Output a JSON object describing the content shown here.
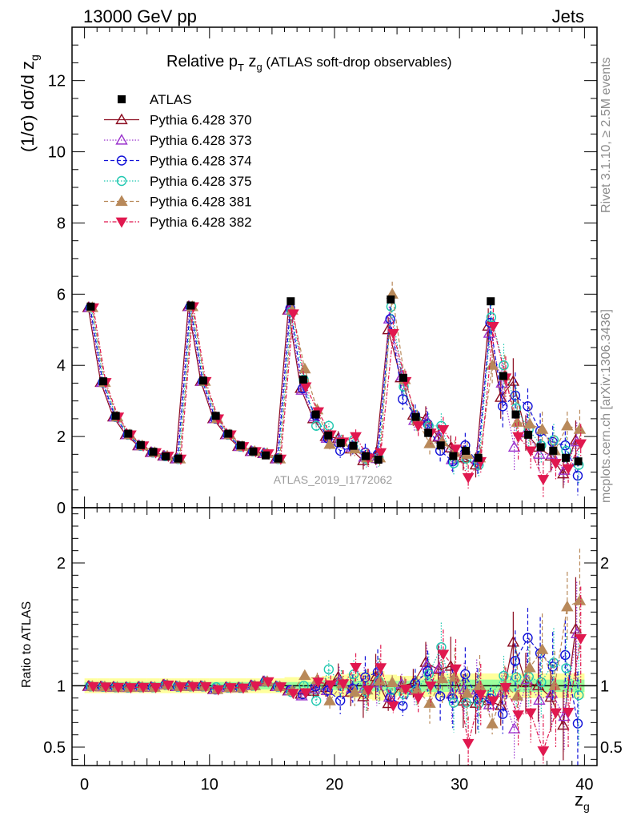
{
  "header": {
    "left": "13000 GeV pp",
    "right": "Jets"
  },
  "side_text": {
    "rivet": "Rivet 3.1.10, ≥ 2.5M events",
    "mcplots": "mcplots.cern.ch [arXiv:1306.3436]"
  },
  "watermark": "ATLAS_2019_I1772062",
  "chart_data": {
    "type": "scatter",
    "title": "Relative p_T z_g (ATLAS soft-drop observables)",
    "title_parts": {
      "main": "Relative p",
      "sub1": "T",
      "mid": " z",
      "sub2": "g",
      "rest": " (ATLAS soft-drop observables)"
    },
    "ylabel": "(1/σ) dσ/d z_g",
    "ylabel_parts": {
      "main": "(1/σ) dσ/d z",
      "sub": "g"
    },
    "xlabel": "z_g",
    "xlabel_parts": {
      "main": "z",
      "sub": "g"
    },
    "ratio_ylabel": "Ratio to ATLAS",
    "xlim": [
      -1,
      41
    ],
    "ylim": [
      0,
      13.5
    ],
    "ratio_ylim": [
      0.35,
      2.45
    ],
    "xticks": [
      0,
      10,
      20,
      30,
      40
    ],
    "yticks": [
      0,
      2,
      4,
      6,
      8,
      10,
      12
    ],
    "ratio_yticks": [
      0.5,
      1,
      2
    ],
    "x": [
      0.5,
      1.5,
      2.5,
      3.5,
      4.5,
      5.5,
      6.5,
      7.5,
      8.5,
      9.5,
      10.5,
      11.5,
      12.5,
      13.5,
      14.5,
      15.5,
      16.5,
      17.5,
      18.5,
      19.5,
      20.5,
      21.5,
      22.5,
      23.5,
      24.5,
      25.5,
      26.5,
      27.5,
      28.5,
      29.5,
      30.5,
      31.5,
      32.5,
      33.5,
      34.5,
      35.5,
      36.5,
      37.5,
      38.5,
      39.5
    ],
    "data": {
      "name": "ATLAS",
      "values": [
        5.65,
        3.55,
        2.58,
        2.08,
        1.76,
        1.57,
        1.44,
        1.38,
        5.68,
        3.57,
        2.58,
        2.08,
        1.75,
        1.58,
        1.47,
        1.38,
        5.8,
        3.6,
        2.62,
        2.03,
        1.82,
        1.74,
        1.45,
        1.35,
        5.85,
        3.65,
        2.55,
        2.1,
        1.75,
        1.45,
        1.6,
        1.4,
        5.8,
        3.7,
        2.62,
        2.05,
        1.7,
        1.6,
        1.4,
        1.3
      ],
      "band_stat": [
        0.03,
        0.03,
        0.03,
        0.03,
        0.03,
        0.03,
        0.03,
        0.03,
        0.03,
        0.03,
        0.03,
        0.03,
        0.03,
        0.03,
        0.03,
        0.03,
        0.03,
        0.03,
        0.03,
        0.035,
        0.035,
        0.04,
        0.04,
        0.045,
        0.04,
        0.04,
        0.045,
        0.05,
        0.05,
        0.05,
        0.05,
        0.05,
        0.05,
        0.05,
        0.05,
        0.05,
        0.05,
        0.05,
        0.05,
        0.05
      ],
      "band_total": [
        0.06,
        0.06,
        0.06,
        0.06,
        0.06,
        0.06,
        0.06,
        0.06,
        0.06,
        0.06,
        0.06,
        0.06,
        0.06,
        0.06,
        0.06,
        0.06,
        0.07,
        0.07,
        0.07,
        0.08,
        0.09,
        0.1,
        0.11,
        0.12,
        0.09,
        0.08,
        0.08,
        0.09,
        0.1,
        0.1,
        0.1,
        0.1,
        0.1,
        0.1,
        0.1,
        0.1,
        0.1,
        0.1,
        0.1,
        0.1
      ]
    },
    "series": [
      {
        "name": "Pythia 6.428 370",
        "color": "#8b0a1e",
        "dash": "",
        "marker": "triangle-open",
        "values": [
          5.62,
          3.52,
          2.55,
          2.05,
          1.74,
          1.55,
          1.45,
          1.37,
          5.65,
          3.55,
          2.5,
          2.05,
          1.72,
          1.58,
          1.52,
          1.37,
          5.55,
          3.35,
          2.5,
          2.0,
          1.95,
          1.65,
          1.32,
          1.45,
          5.0,
          3.65,
          2.6,
          2.5,
          1.98,
          1.68,
          1.4,
          1.2,
          5.1,
          3.1,
          3.55,
          2.1,
          1.7,
          1.45,
          0.95,
          1.9
        ],
        "errors": [
          0.05,
          0.05,
          0.05,
          0.05,
          0.05,
          0.05,
          0.05,
          0.05,
          0.05,
          0.05,
          0.05,
          0.05,
          0.05,
          0.05,
          0.05,
          0.05,
          0.1,
          0.1,
          0.15,
          0.15,
          0.2,
          0.2,
          0.25,
          0.25,
          0.35,
          0.3,
          0.3,
          0.35,
          0.35,
          0.35,
          0.35,
          0.35,
          0.5,
          0.6,
          0.65,
          0.5,
          0.5,
          0.45,
          0.4,
          0.55
        ]
      },
      {
        "name": "Pythia 6.428 373",
        "color": "#9a32cd",
        "dash": "1.5,2",
        "marker": "triangle-open",
        "values": [
          5.62,
          3.52,
          2.55,
          2.05,
          1.74,
          1.55,
          1.45,
          1.37,
          5.65,
          3.55,
          2.5,
          2.05,
          1.72,
          1.58,
          1.52,
          1.37,
          5.55,
          3.3,
          2.55,
          1.95,
          1.9,
          1.7,
          1.42,
          1.38,
          5.3,
          3.7,
          2.45,
          2.45,
          2.0,
          1.35,
          1.55,
          1.35,
          4.9,
          3.5,
          1.7,
          2.15,
          1.5,
          1.5,
          1.05,
          1.85
        ],
        "errors": [
          0.05,
          0.05,
          0.05,
          0.05,
          0.05,
          0.05,
          0.05,
          0.05,
          0.05,
          0.05,
          0.05,
          0.05,
          0.05,
          0.05,
          0.05,
          0.05,
          0.1,
          0.1,
          0.15,
          0.15,
          0.2,
          0.2,
          0.25,
          0.25,
          0.35,
          0.3,
          0.3,
          0.35,
          0.35,
          0.35,
          0.35,
          0.35,
          0.5,
          0.6,
          0.65,
          0.5,
          0.5,
          0.45,
          0.4,
          0.55
        ]
      },
      {
        "name": "Pythia 6.428 374",
        "color": "#1010d8",
        "dash": "5,3",
        "marker": "circle-open",
        "values": [
          5.62,
          3.52,
          2.55,
          2.05,
          1.74,
          1.55,
          1.45,
          1.37,
          5.65,
          3.55,
          2.5,
          2.05,
          1.72,
          1.58,
          1.52,
          1.37,
          5.6,
          3.35,
          2.6,
          1.95,
          1.6,
          1.7,
          1.55,
          1.5,
          5.3,
          3.05,
          2.6,
          2.35,
          1.6,
          1.3,
          1.75,
          1.25,
          5.2,
          2.85,
          3.15,
          2.85,
          2.15,
          1.85,
          1.75,
          0.9
        ],
        "errors": [
          0.05,
          0.05,
          0.05,
          0.05,
          0.05,
          0.05,
          0.05,
          0.05,
          0.05,
          0.05,
          0.05,
          0.05,
          0.05,
          0.05,
          0.05,
          0.05,
          0.1,
          0.1,
          0.15,
          0.15,
          0.2,
          0.2,
          0.25,
          0.25,
          0.35,
          0.3,
          0.3,
          0.35,
          0.35,
          0.35,
          0.35,
          0.35,
          0.5,
          0.6,
          0.65,
          0.5,
          0.5,
          0.45,
          0.4,
          0.55
        ]
      },
      {
        "name": "Pythia 6.428 375",
        "color": "#20c8b0",
        "dash": "1.5,2",
        "marker": "circle-open",
        "values": [
          5.62,
          3.52,
          2.55,
          2.05,
          1.74,
          1.55,
          1.45,
          1.37,
          5.65,
          3.55,
          2.55,
          2.05,
          1.72,
          1.58,
          1.52,
          1.37,
          5.5,
          3.6,
          2.3,
          2.3,
          1.85,
          1.9,
          1.38,
          1.4,
          5.65,
          3.4,
          2.45,
          2.3,
          2.3,
          1.25,
          1.38,
          1.2,
          5.35,
          4.0,
          2.8,
          2.2,
          1.75,
          1.9,
          1.6,
          1.2
        ],
        "errors": [
          0.05,
          0.05,
          0.05,
          0.05,
          0.05,
          0.05,
          0.05,
          0.05,
          0.05,
          0.05,
          0.05,
          0.05,
          0.05,
          0.05,
          0.05,
          0.05,
          0.1,
          0.1,
          0.15,
          0.15,
          0.2,
          0.2,
          0.25,
          0.25,
          0.35,
          0.3,
          0.3,
          0.35,
          0.35,
          0.35,
          0.35,
          0.35,
          0.5,
          0.6,
          0.65,
          0.5,
          0.5,
          0.45,
          0.4,
          0.55
        ]
      },
      {
        "name": "Pythia 6.428 381",
        "color": "#b8895a",
        "dash": "5,3",
        "marker": "triangle",
        "values": [
          5.62,
          3.52,
          2.55,
          2.05,
          1.74,
          1.55,
          1.45,
          1.37,
          5.65,
          3.55,
          2.5,
          2.05,
          1.72,
          1.58,
          1.52,
          1.37,
          5.55,
          3.9,
          2.75,
          1.78,
          1.85,
          1.65,
          1.4,
          1.4,
          6.0,
          3.6,
          2.45,
          1.8,
          1.85,
          1.55,
          1.5,
          1.4,
          4.0,
          3.7,
          2.4,
          2.35,
          2.2,
          1.6,
          2.3,
          2.2
        ],
        "errors": [
          0.05,
          0.05,
          0.05,
          0.05,
          0.05,
          0.05,
          0.05,
          0.05,
          0.05,
          0.05,
          0.05,
          0.05,
          0.05,
          0.05,
          0.05,
          0.05,
          0.1,
          0.1,
          0.15,
          0.15,
          0.2,
          0.2,
          0.25,
          0.25,
          0.35,
          0.3,
          0.3,
          0.35,
          0.35,
          0.35,
          0.35,
          0.35,
          0.5,
          0.6,
          0.65,
          0.5,
          0.5,
          0.45,
          0.4,
          0.55
        ]
      },
      {
        "name": "Pythia 6.428 382",
        "color": "#e0184f",
        "dash": "5,2,1.5,2",
        "marker": "triangle-down",
        "values": [
          5.62,
          3.52,
          2.55,
          2.05,
          1.74,
          1.55,
          1.45,
          1.37,
          5.65,
          3.55,
          2.5,
          2.05,
          1.72,
          1.58,
          1.52,
          1.37,
          5.45,
          3.4,
          2.7,
          2.05,
          1.85,
          2.0,
          1.4,
          1.55,
          4.9,
          3.55,
          2.3,
          2.1,
          2.2,
          1.65,
          0.85,
          1.3,
          5.1,
          3.65,
          2.0,
          1.6,
          0.8,
          1.25,
          1.1,
          1.8
        ],
        "errors": [
          0.05,
          0.05,
          0.05,
          0.05,
          0.05,
          0.05,
          0.05,
          0.05,
          0.05,
          0.05,
          0.05,
          0.05,
          0.05,
          0.05,
          0.05,
          0.05,
          0.1,
          0.1,
          0.15,
          0.15,
          0.2,
          0.2,
          0.25,
          0.25,
          0.35,
          0.3,
          0.3,
          0.35,
          0.35,
          0.35,
          0.35,
          0.35,
          0.5,
          0.6,
          0.65,
          0.5,
          0.5,
          0.45,
          0.4,
          0.55
        ]
      }
    ],
    "legend_placement": "top-left",
    "grid": false
  }
}
